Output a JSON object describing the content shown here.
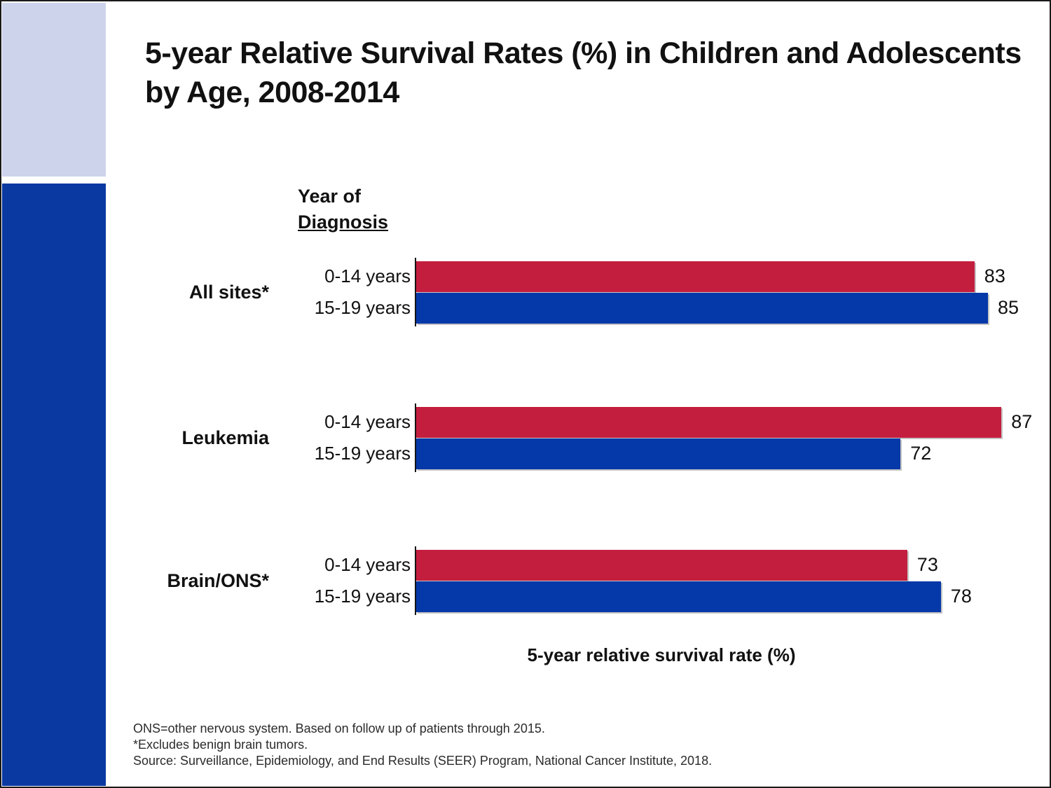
{
  "colors": {
    "sidebar_top": "#cdd3eb",
    "sidebar_bottom": "#0a39a2",
    "title_text": "#111111",
    "footnote_text": "#2b2b2b"
  },
  "title": {
    "line1": "5-year Relative Survival Rates (%) in Children and Adolescents",
    "line2": "by Age, 2008-2014"
  },
  "chart_data": {
    "type": "bar",
    "orientation": "horizontal",
    "group_header_line1": "Year of",
    "group_header_line2": "Diagnosis",
    "categories": [
      "All sites*",
      "Leukemia",
      "Brain/ONS*"
    ],
    "series": [
      {
        "name": "0-14 years",
        "color": "#c41e3e",
        "values": [
          83,
          87,
          73
        ]
      },
      {
        "name": "15-19 years",
        "color": "#0538a8",
        "values": [
          85,
          72,
          78
        ]
      }
    ],
    "xlabel": "5-year relative survival rate (%)",
    "xlim": [
      0,
      100
    ],
    "grid": false,
    "legend_position": "inline-row-labels",
    "value_labels_shown": true
  },
  "footnotes": [
    "ONS=other nervous system. Based on follow up of patients through 2015.",
    "*Excludes benign brain tumors.",
    "Source: Surveillance, Epidemiology, and End Results (SEER) Program, National Cancer Institute, 2018."
  ]
}
